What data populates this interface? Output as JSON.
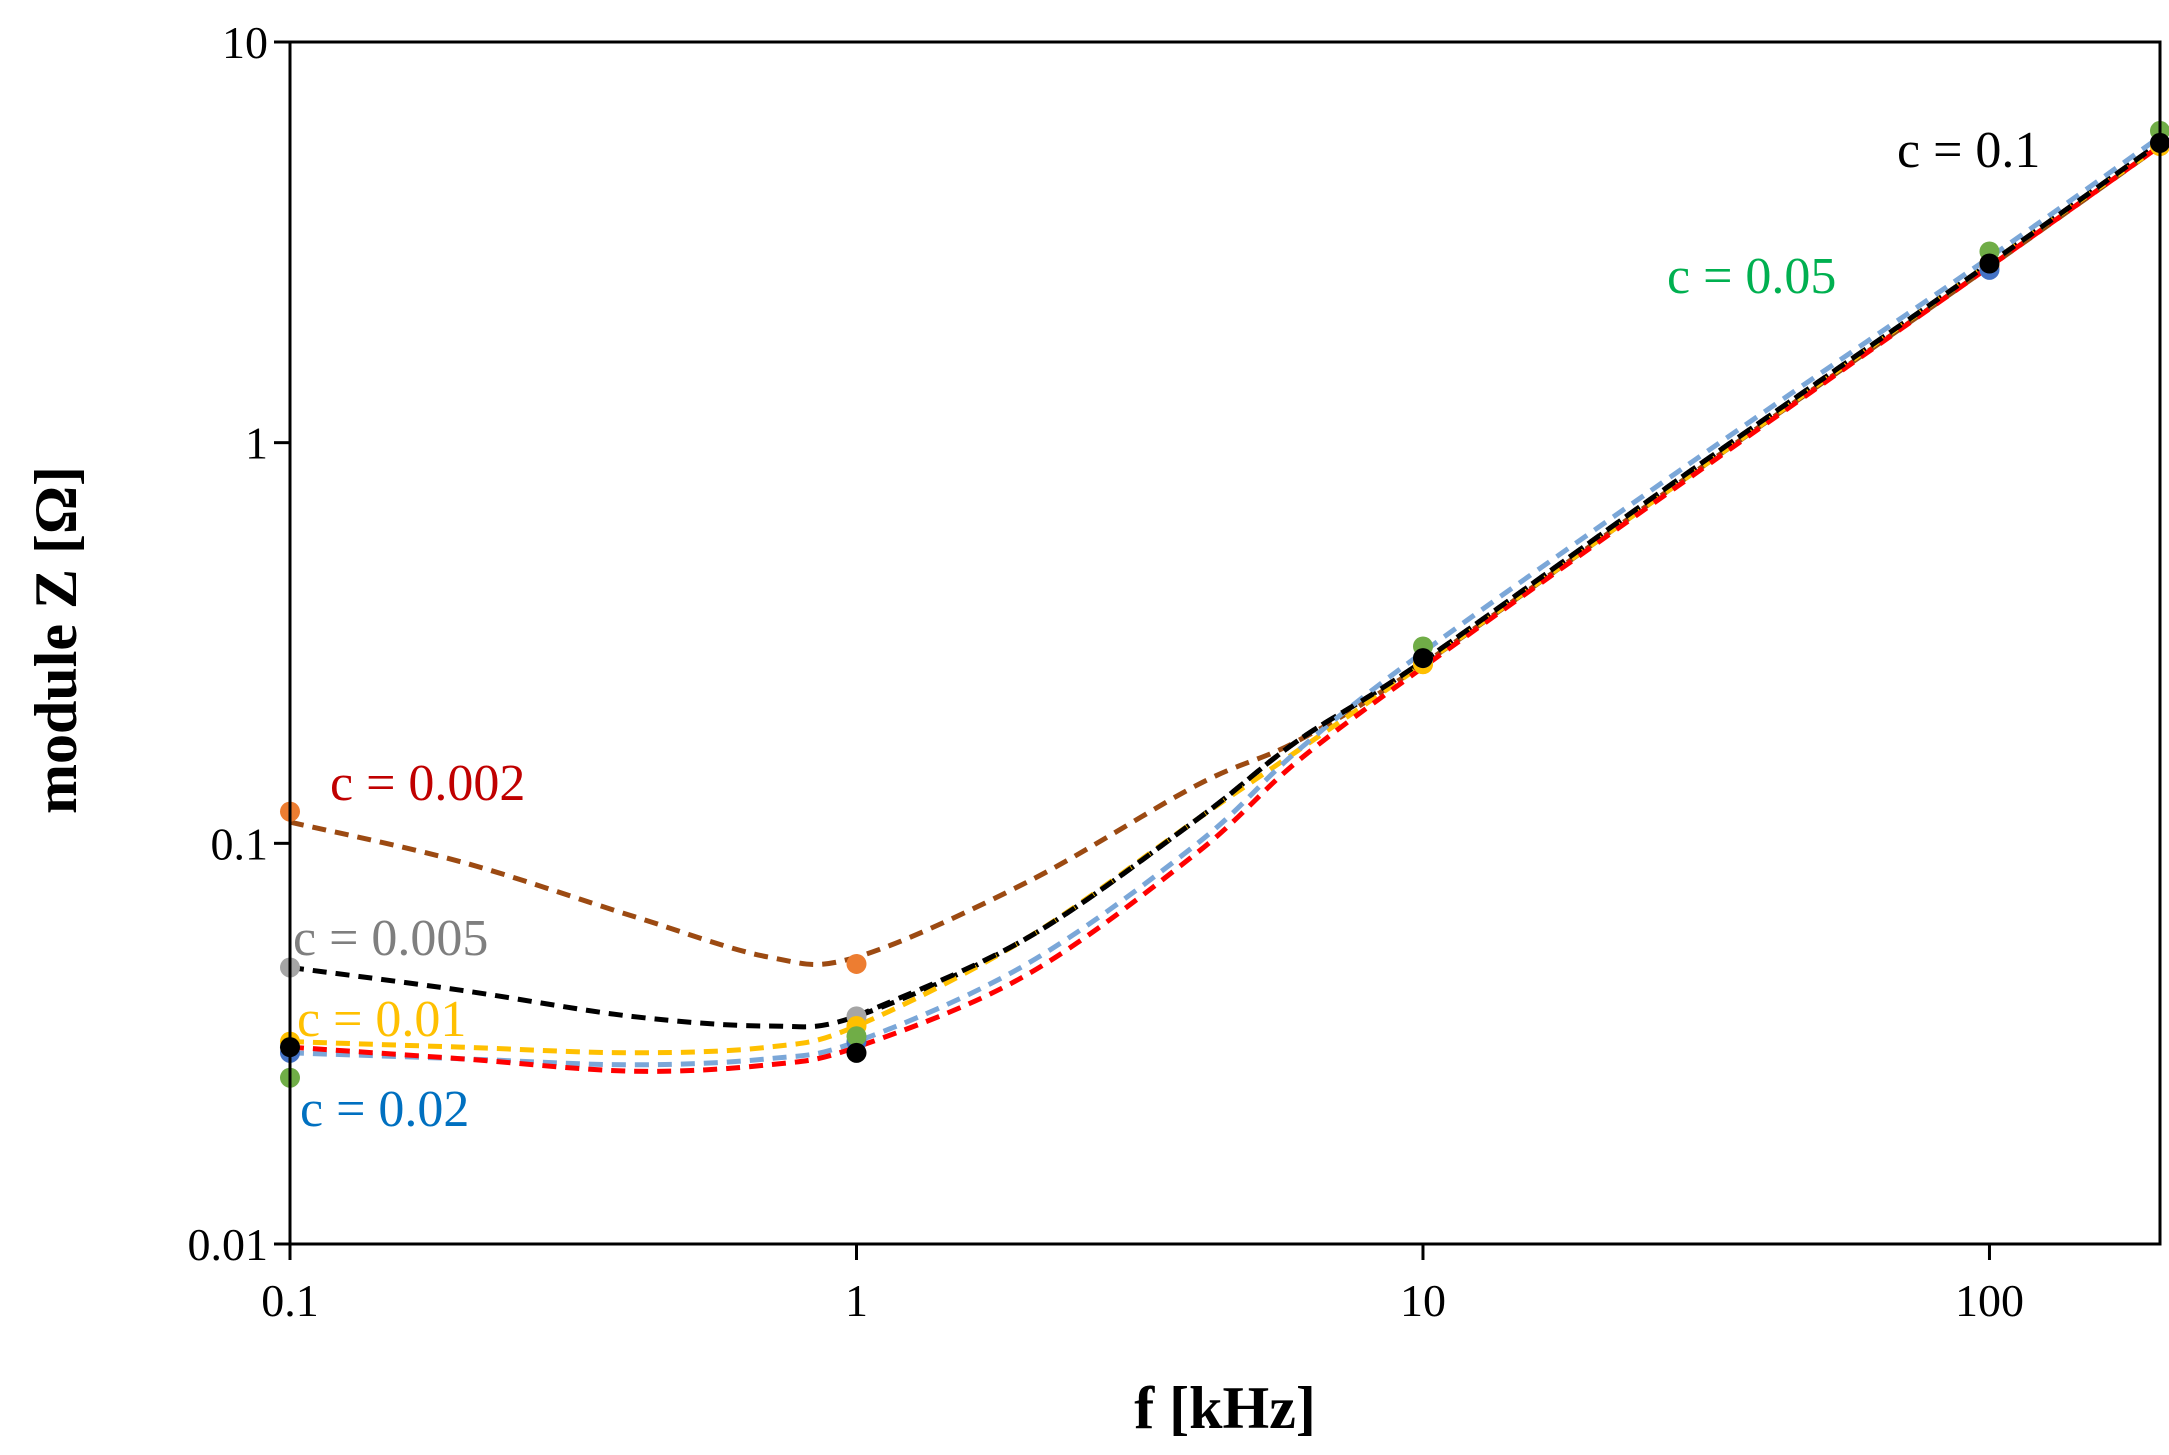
{
  "chart_data": {
    "type": "line",
    "xlabel": "f [kHz]",
    "ylabel": "module Z [Ω]",
    "xscale": "log",
    "yscale": "log",
    "xlim": [
      0.1,
      200
    ],
    "ylim": [
      0.01,
      10
    ],
    "x_ticks": [
      {
        "value": 0.1,
        "label": "0.1"
      },
      {
        "value": 1,
        "label": "1"
      },
      {
        "value": 10,
        "label": "10"
      },
      {
        "value": 100,
        "label": "100"
      }
    ],
    "y_ticks": [
      {
        "value": 0.01,
        "label": "0.01"
      },
      {
        "value": 0.1,
        "label": "0.1"
      },
      {
        "value": 1,
        "label": "1"
      },
      {
        "value": 10,
        "label": "10"
      }
    ],
    "series": [
      {
        "name": "c = 0.002",
        "label_color": "#c00000",
        "line_color": "#9c4a12",
        "point_color": "#ed7d31",
        "points": {
          "x": [
            0.1,
            1,
            10,
            100,
            200
          ],
          "y": [
            0.12,
            0.05,
            0.28,
            2.75,
            5.5
          ]
        },
        "curve": {
          "x": [
            0.1,
            0.2,
            0.4,
            0.7,
            1,
            2,
            4,
            6,
            10,
            30,
            100,
            200
          ],
          "y": [
            0.113,
            0.09,
            0.066,
            0.052,
            0.052,
            0.08,
            0.14,
            0.18,
            0.28,
            0.84,
            2.75,
            5.5
          ]
        }
      },
      {
        "name": "c = 0.005",
        "label_color": "#7f7f7f",
        "line_color": "#000000",
        "point_color": "#a5a5a5",
        "points": {
          "x": [
            0.1,
            1,
            10,
            100,
            200
          ],
          "y": [
            0.049,
            0.037,
            0.285,
            2.8,
            5.6
          ]
        },
        "curve": {
          "x": [
            0.1,
            0.2,
            0.4,
            0.7,
            1,
            2,
            4,
            6,
            10,
            30,
            100,
            200
          ],
          "y": [
            0.049,
            0.043,
            0.037,
            0.035,
            0.037,
            0.058,
            0.115,
            0.18,
            0.285,
            0.86,
            2.8,
            5.6
          ]
        }
      },
      {
        "name": "c = 0.01",
        "label_color": "#ffc000",
        "line_color": "#ffc000",
        "point_color": "#ffc000",
        "points": {
          "x": [
            0.1,
            1,
            10,
            100,
            200
          ],
          "y": [
            0.032,
            0.035,
            0.28,
            2.8,
            5.5
          ]
        },
        "curve": {
          "x": [
            0.1,
            0.2,
            0.4,
            0.7,
            1,
            2,
            4,
            6,
            10,
            30,
            100,
            200
          ],
          "y": [
            0.032,
            0.031,
            0.03,
            0.031,
            0.035,
            0.058,
            0.115,
            0.17,
            0.28,
            0.84,
            2.8,
            5.5
          ]
        }
      },
      {
        "name": "c = 0.02",
        "label_color": "#0070c0",
        "line_color": "#7ba7d8",
        "point_color": "#4472c4",
        "points": {
          "x": [
            0.1,
            1,
            10,
            100,
            200
          ],
          "y": [
            0.03,
            0.032,
            0.29,
            2.7,
            5.6
          ]
        },
        "curve": {
          "x": [
            0.1,
            0.2,
            0.4,
            0.7,
            1,
            2,
            4,
            6,
            10,
            30,
            100,
            200
          ],
          "y": [
            0.03,
            0.029,
            0.028,
            0.029,
            0.032,
            0.05,
            0.1,
            0.17,
            0.3,
            0.9,
            2.9,
            5.8
          ]
        }
      },
      {
        "name": "c = 0.05",
        "label_color": "#00b050",
        "line_color": "#ff0000",
        "point_color": "#70ad47",
        "points": {
          "x": [
            0.1,
            1,
            10,
            100,
            200
          ],
          "y": [
            0.026,
            0.033,
            0.31,
            3.0,
            6.0
          ]
        },
        "curve": {
          "x": [
            0.1,
            0.2,
            0.4,
            0.7,
            1,
            2,
            4,
            6,
            10,
            30,
            100,
            200
          ],
          "y": [
            0.031,
            0.029,
            0.027,
            0.028,
            0.031,
            0.047,
            0.095,
            0.16,
            0.275,
            0.83,
            2.75,
            5.5
          ]
        }
      },
      {
        "name": "c = 0.1",
        "label_color": "#000000",
        "line_color": "#000000",
        "point_color": "#000000",
        "points": {
          "x": [
            0.1,
            1,
            10,
            100,
            200
          ],
          "y": [
            0.031,
            0.03,
            0.29,
            2.8,
            5.6
          ]
        },
        "curve": {
          "x": [
            1,
            2,
            4,
            6,
            10,
            30,
            100,
            200
          ],
          "y": [
            0.037,
            0.058,
            0.115,
            0.18,
            0.285,
            0.86,
            2.8,
            5.6
          ]
        }
      }
    ]
  }
}
